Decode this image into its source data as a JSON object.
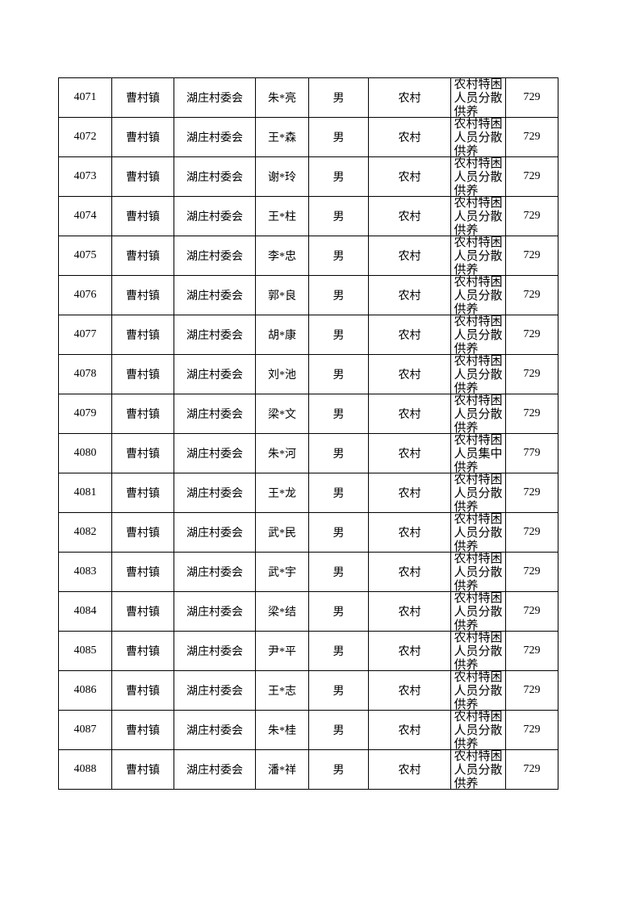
{
  "table": {
    "rows": [
      [
        4071,
        "曹村镇",
        "湖庄村委会",
        "朱*亮",
        "男",
        "农村",
        "农村特困人员分散供养",
        729
      ],
      [
        4072,
        "曹村镇",
        "湖庄村委会",
        "王*森",
        "男",
        "农村",
        "农村特困人员分散供养",
        729
      ],
      [
        4073,
        "曹村镇",
        "湖庄村委会",
        "谢*玲",
        "男",
        "农村",
        "农村特困人员分散供养",
        729
      ],
      [
        4074,
        "曹村镇",
        "湖庄村委会",
        "王*柱",
        "男",
        "农村",
        "农村特困人员分散供养",
        729
      ],
      [
        4075,
        "曹村镇",
        "湖庄村委会",
        "李*忠",
        "男",
        "农村",
        "农村特困人员分散供养",
        729
      ],
      [
        4076,
        "曹村镇",
        "湖庄村委会",
        "郭*良",
        "男",
        "农村",
        "农村特困人员分散供养",
        729
      ],
      [
        4077,
        "曹村镇",
        "湖庄村委会",
        "胡*康",
        "男",
        "农村",
        "农村特困人员分散供养",
        729
      ],
      [
        4078,
        "曹村镇",
        "湖庄村委会",
        "刘*池",
        "男",
        "农村",
        "农村特困人员分散供养",
        729
      ],
      [
        4079,
        "曹村镇",
        "湖庄村委会",
        "梁*文",
        "男",
        "农村",
        "农村特困人员分散供养",
        729
      ],
      [
        4080,
        "曹村镇",
        "湖庄村委会",
        "朱*河",
        "男",
        "农村",
        "农村特困人员集中供养",
        779
      ],
      [
        4081,
        "曹村镇",
        "湖庄村委会",
        "王*龙",
        "男",
        "农村",
        "农村特困人员分散供养",
        729
      ],
      [
        4082,
        "曹村镇",
        "湖庄村委会",
        "武*民",
        "男",
        "农村",
        "农村特困人员分散供养",
        729
      ],
      [
        4083,
        "曹村镇",
        "湖庄村委会",
        "武*宇",
        "男",
        "农村",
        "农村特困人员分散供养",
        729
      ],
      [
        4084,
        "曹村镇",
        "湖庄村委会",
        "梁*结",
        "男",
        "农村",
        "农村特困人员分散供养",
        729
      ],
      [
        4085,
        "曹村镇",
        "湖庄村委会",
        "尹*平",
        "男",
        "农村",
        "农村特困人员分散供养",
        729
      ],
      [
        4086,
        "曹村镇",
        "湖庄村委会",
        "王*志",
        "男",
        "农村",
        "农村特困人员分散供养",
        729
      ],
      [
        4087,
        "曹村镇",
        "湖庄村委会",
        "朱*桂",
        "男",
        "农村",
        "农村特困人员分散供养",
        729
      ],
      [
        4088,
        "曹村镇",
        "湖庄村委会",
        "潘*祥",
        "男",
        "农村",
        "农村特困人员分散供养",
        729
      ]
    ]
  }
}
